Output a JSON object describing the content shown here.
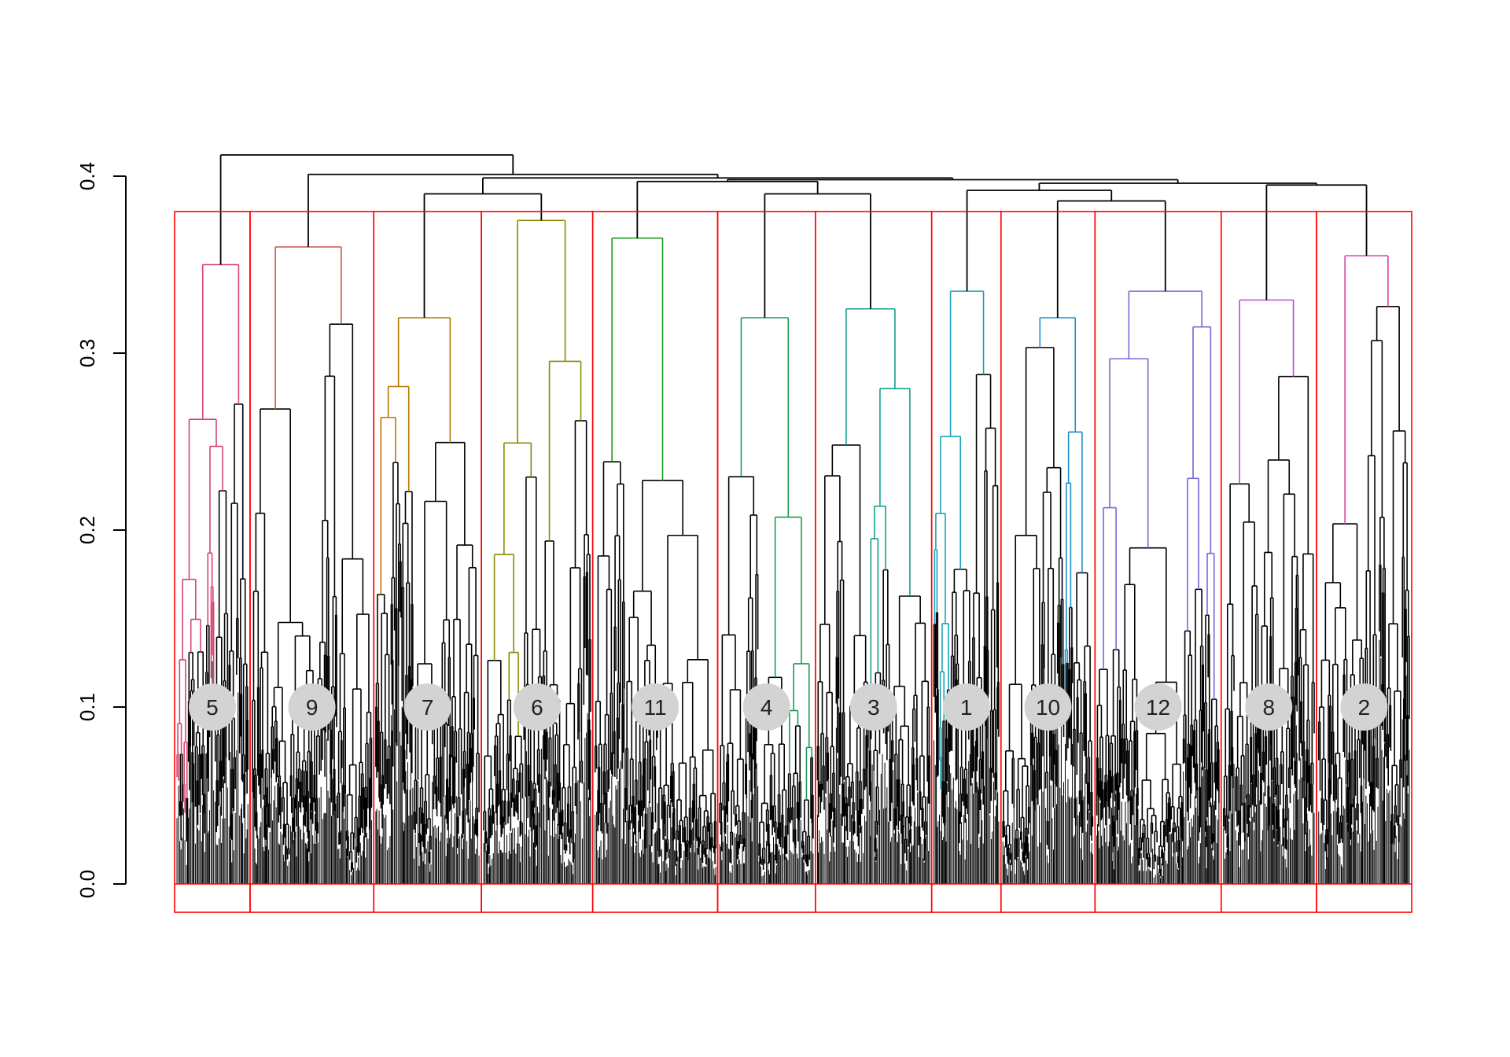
{
  "chart_data": {
    "type": "dendrogram",
    "title": "",
    "xlabel": "",
    "ylabel": "",
    "ylim": [
      0,
      0.4
    ],
    "y_ticks": [
      {
        "value": 0.0,
        "label": "0.0"
      },
      {
        "value": 0.1,
        "label": "0.1"
      },
      {
        "value": 0.2,
        "label": "0.2"
      },
      {
        "value": 0.3,
        "label": "0.3"
      },
      {
        "value": 0.4,
        "label": "0.4"
      }
    ],
    "cut_height": 0.38,
    "cut_box_color": "#ff0000",
    "label_marker_height": 0.1,
    "clusters": [
      {
        "label": "5",
        "color": "#d6456f",
        "share": 0.061,
        "height": 0.35
      },
      {
        "label": "9",
        "color": "#c8573e",
        "share": 0.1,
        "height": 0.36
      },
      {
        "label": "7",
        "color": "#b87500",
        "share": 0.087,
        "height": 0.32
      },
      {
        "label": "6",
        "color": "#888a00",
        "share": 0.09,
        "height": 0.375
      },
      {
        "label": "11",
        "color": "#1b9a1b",
        "share": 0.101,
        "height": 0.365
      },
      {
        "label": "4",
        "color": "#1e9a55",
        "share": 0.079,
        "height": 0.32
      },
      {
        "label": "3",
        "color": "#13a08d",
        "share": 0.094,
        "height": 0.325
      },
      {
        "label": "1",
        "color": "#1aa0b8",
        "share": 0.056,
        "height": 0.335
      },
      {
        "label": "10",
        "color": "#1e8dcc",
        "share": 0.076,
        "height": 0.32
      },
      {
        "label": "12",
        "color": "#7369da",
        "share": 0.102,
        "height": 0.335
      },
      {
        "label": "8",
        "color": "#b44ad6",
        "share": 0.077,
        "height": 0.33
      },
      {
        "label": "2",
        "color": "#d93caa",
        "share": 0.077,
        "height": 0.355
      }
    ],
    "upper_merges": [
      {
        "left": [
          0
        ],
        "right": [
          1,
          2,
          3,
          4,
          5,
          6,
          7,
          8,
          9,
          10,
          11
        ],
        "height": 0.412
      },
      {
        "left": [
          1
        ],
        "right": [
          2,
          3,
          4,
          5,
          6,
          7,
          8,
          9,
          10,
          11
        ],
        "height": 0.401
      },
      {
        "left": [
          2,
          3
        ],
        "right": [
          4,
          5,
          6,
          7,
          8,
          9,
          10,
          11
        ],
        "height": 0.399
      },
      {
        "left": [
          2
        ],
        "right": [
          3
        ],
        "height": 0.39
      },
      {
        "left": [
          4,
          5,
          6
        ],
        "right": [
          7,
          8,
          9,
          10,
          11
        ],
        "height": 0.398
      },
      {
        "left": [
          4
        ],
        "right": [
          5,
          6
        ],
        "height": 0.397
      },
      {
        "left": [
          5
        ],
        "right": [
          6
        ],
        "height": 0.39
      },
      {
        "left": [
          7,
          8,
          9
        ],
        "right": [
          10,
          11
        ],
        "height": 0.396
      },
      {
        "left": [
          7
        ],
        "right": [
          8,
          9
        ],
        "height": 0.392
      },
      {
        "left": [
          8
        ],
        "right": [
          9
        ],
        "height": 0.386
      },
      {
        "left": [
          10
        ],
        "right": [
          11
        ],
        "height": 0.395
      }
    ]
  }
}
